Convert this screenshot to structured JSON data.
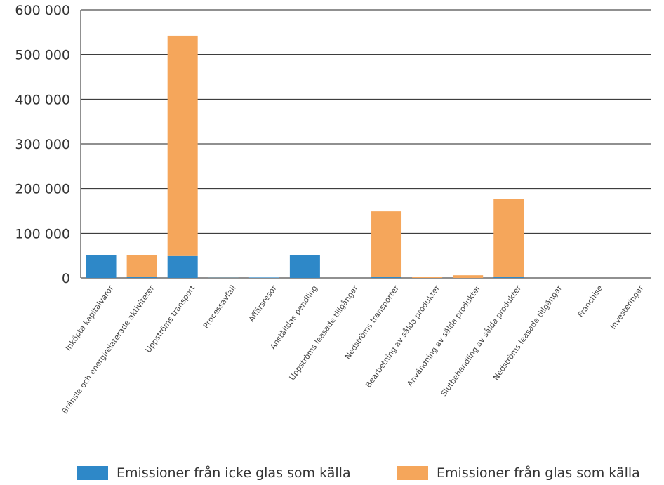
{
  "chart_data": {
    "type": "bar",
    "stacked": true,
    "categories": [
      "Inköpta kapitalvaror",
      "Bränsle och energirelaterade aktiviteter",
      "Uppströms transport",
      "Processavfall",
      "Affärsresor",
      "Anställdas pendling",
      "Uppströms leasade tillgångar",
      "Nedströms transporter",
      "Bearbetning av sålda produkter",
      "Användning av sålda produkter",
      "Slutbehandling av sålda produkter",
      "Nedströms leasade tillgångar",
      "Franchise",
      "Investeringar"
    ],
    "series": [
      {
        "name": "Emissioner från icke glas som källa",
        "color": "#2E88C8",
        "values": [
          51000,
          2000,
          49000,
          1000,
          1000,
          51000,
          0,
          3000,
          0,
          0,
          3000,
          0,
          0,
          0
        ]
      },
      {
        "name": "Emissioner från glas som källa",
        "color": "#F5A65B",
        "values": [
          0,
          49000,
          493000,
          1000,
          0,
          0,
          0,
          146000,
          2000,
          6000,
          174000,
          0,
          0,
          0
        ]
      }
    ],
    "ylim": [
      0,
      600000
    ],
    "yticks": [
      {
        "value": 0,
        "label": "0"
      },
      {
        "value": 100000,
        "label": "100 000"
      },
      {
        "value": 200000,
        "label": "200 000"
      },
      {
        "value": 300000,
        "label": "300 000"
      },
      {
        "value": 400000,
        "label": "400 000"
      },
      {
        "value": 500000,
        "label": "500 000"
      },
      {
        "value": 600000,
        "label": "600 000"
      }
    ],
    "grid": true,
    "legend_position": "bottom"
  }
}
